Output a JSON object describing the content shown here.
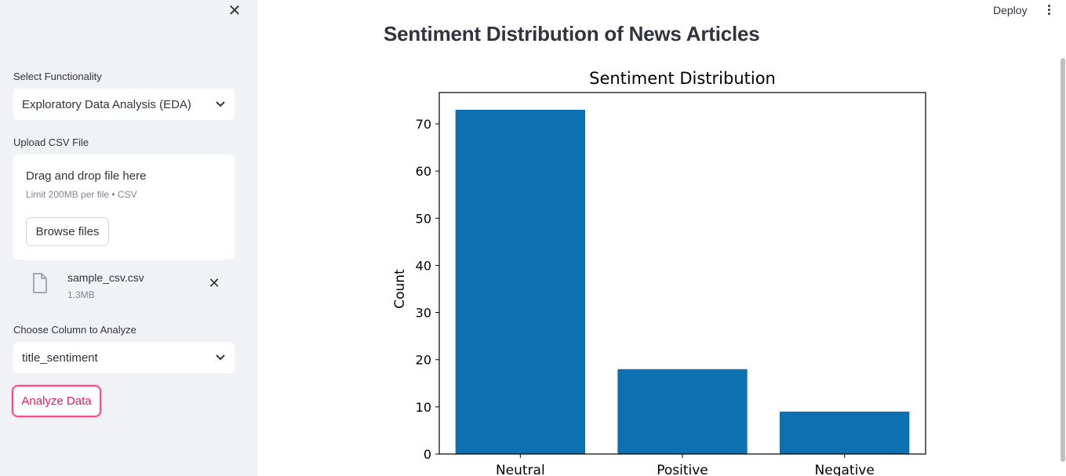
{
  "sidebar": {
    "close_icon": "close-icon",
    "functionality_label": "Select Functionality",
    "functionality_value": "Exploratory Data Analysis (EDA)",
    "upload_label": "Upload CSV File",
    "dropzone_title": "Drag and drop file here",
    "dropzone_limit": "Limit 200MB per file • CSV",
    "browse_label": "Browse files",
    "file_name": "sample_csv.csv",
    "file_size": "1.3MB",
    "column_label": "Choose Column to Analyze",
    "column_value": "title_sentiment",
    "analyze_label": "Analyze Data"
  },
  "header": {
    "deploy_label": "Deploy",
    "menu_icon": "kebab-menu-icon"
  },
  "main": {
    "page_title": "Sentiment Distribution of News Articles"
  },
  "colors": {
    "bar": "#0c70b1",
    "accent": "#ff4b81"
  },
  "chart_data": {
    "type": "bar",
    "title": "Sentiment Distribution",
    "xlabel": "",
    "ylabel": "Count",
    "categories": [
      "Neutral",
      "Positive",
      "Negative"
    ],
    "values": [
      73,
      18,
      9
    ],
    "ylim": [
      0,
      76.65
    ],
    "yticks": [
      0,
      10,
      20,
      30,
      40,
      50,
      60,
      70
    ],
    "grid": false
  }
}
